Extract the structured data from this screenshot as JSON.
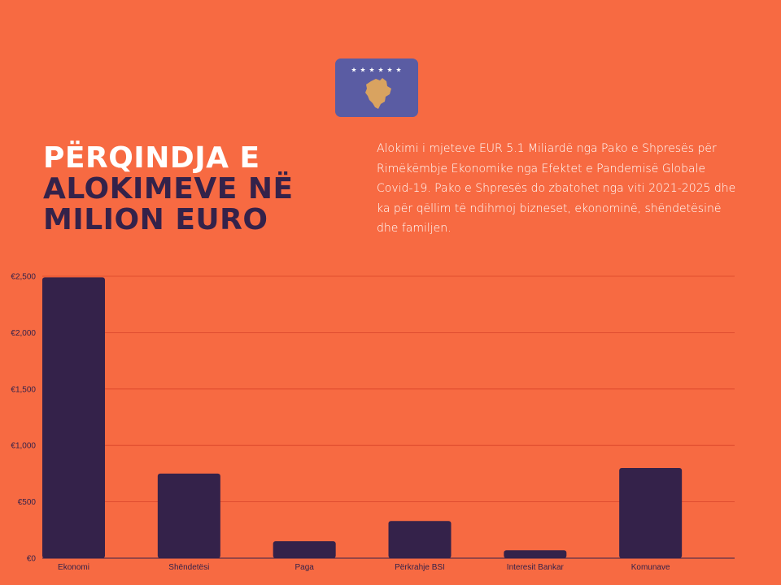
{
  "header": {
    "title_line1": "PËRQINDJA E",
    "title_line2": "ALOKIMEVE NË",
    "title_line3": "MILION EURO"
  },
  "description": "Alokimi i mjeteve EUR 5.1 Miliardë nga Pako e Shpresës për Rimëkëmbje Ekonomike nga Efektet e Pandemisë Globale Covid-19. Pako e Shpresës do zbatohet nga viti 2021-2025 dhe ka për qëllim të ndihmoj bizneset, ekonominë, shëndetësinë dhe familjen.",
  "flag": {
    "icon": "kosovo-flag-icon",
    "background": "#5a5ca3",
    "map_color": "#d9a360",
    "star_color": "#ffffff"
  },
  "colors": {
    "background": "#f76a42",
    "bar": "#34224a",
    "title_white": "#ffffff",
    "title_dark": "#34224a",
    "grid": "#d9452a"
  },
  "chart_data": {
    "type": "bar",
    "categories": [
      "Ekonomi",
      "Shëndetësi",
      "Paga",
      "Përkrahje BSI",
      "Interesit Bankar",
      "Komunave"
    ],
    "values": [
      2490,
      750,
      150,
      330,
      70,
      800
    ],
    "ylim": [
      0,
      2500
    ],
    "yticks": [
      0,
      500,
      1000,
      1500,
      2000,
      2500
    ],
    "ytick_labels": [
      "€0",
      "€500",
      "€1,000",
      "€1,500",
      "€2,000",
      "€2,500"
    ],
    "grid": true,
    "legend": "none"
  }
}
